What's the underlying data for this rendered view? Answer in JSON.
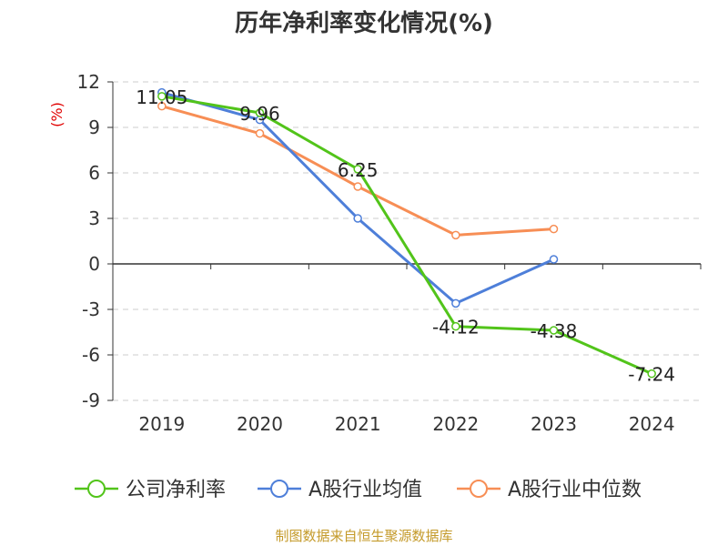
{
  "colors": {
    "series1": "#52c41a",
    "series2": "#4e7fd9",
    "series3": "#f78e55",
    "ylabel": "#e00000",
    "source": "#c49a2a",
    "grid": "#cccccc",
    "axis": "#333333"
  },
  "chart_data": {
    "type": "line",
    "title": "历年净利率变化情况(%)",
    "ylabel": "(%)",
    "xlabel": "",
    "categories": [
      "2019",
      "2020",
      "2021",
      "2022",
      "2023",
      "2024"
    ],
    "ylim": [
      -9,
      12
    ],
    "yticks": [
      12,
      9,
      6,
      3,
      0,
      -3,
      -6,
      -9
    ],
    "grid": true,
    "legend_position": "bottom",
    "series": [
      {
        "name": "公司净利率",
        "values": [
          11.05,
          9.96,
          6.25,
          -4.12,
          -4.38,
          -7.24
        ],
        "labels": [
          "11.05",
          "9.96",
          "6.25",
          "-4.12",
          "-4.38",
          "-7.24"
        ]
      },
      {
        "name": "A股行业均值",
        "values": [
          11.3,
          9.5,
          3.0,
          -2.6,
          0.3,
          null
        ]
      },
      {
        "name": "A股行业中位数",
        "values": [
          10.4,
          8.6,
          5.1,
          1.9,
          2.3,
          null
        ]
      }
    ]
  },
  "source": "制图数据来自恒生聚源数据库"
}
